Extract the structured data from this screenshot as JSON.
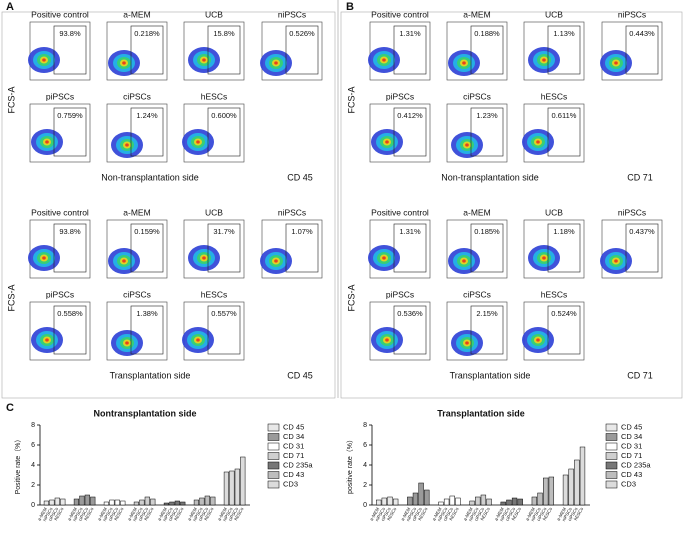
{
  "panels": [
    {
      "label": "A",
      "blocks": [
        {
          "y_label": "FCS-A",
          "side_label": "Non-transplantation side",
          "marker_label": "CD 45",
          "plots": [
            {
              "name": "Positive control",
              "percent": "93.8%"
            },
            {
              "name": "a-MEM",
              "percent": "0.218%"
            },
            {
              "name": "UCB",
              "percent": "15.8%"
            },
            {
              "name": "niPSCs",
              "percent": "0.526%"
            },
            {
              "name": "piPSCs",
              "percent": "0.759%"
            },
            {
              "name": "ciPSCs",
              "percent": "1.24%"
            },
            {
              "name": "hESCs",
              "percent": "0.600%"
            }
          ]
        },
        {
          "y_label": "FCS-A",
          "side_label": "Transplantation side",
          "marker_label": "CD 45",
          "plots": [
            {
              "name": "Positive control",
              "percent": "93.8%"
            },
            {
              "name": "a-MEM",
              "percent": "0.159%"
            },
            {
              "name": "UCB",
              "percent": "31.7%"
            },
            {
              "name": "niPSCs",
              "percent": "1.07%"
            },
            {
              "name": "piPSCs",
              "percent": "0.558%"
            },
            {
              "name": "ciPSCs",
              "percent": "1.38%"
            },
            {
              "name": "hESCs",
              "percent": "0.557%"
            }
          ]
        }
      ]
    },
    {
      "label": "B",
      "blocks": [
        {
          "y_label": "FCS-A",
          "side_label": "Non-transplantation side",
          "marker_label": "CD 71",
          "plots": [
            {
              "name": "Positive control",
              "percent": "1.31%"
            },
            {
              "name": "a-MEM",
              "percent": "0.188%"
            },
            {
              "name": "UCB",
              "percent": "1.13%"
            },
            {
              "name": "niPSCs",
              "percent": "0.443%"
            },
            {
              "name": "piPSCs",
              "percent": "0.412%"
            },
            {
              "name": "ciPSCs",
              "percent": "1.23%"
            },
            {
              "name": "hESCs",
              "percent": "0.611%"
            }
          ]
        },
        {
          "y_label": "FCS-A",
          "side_label": "Transplantation side",
          "marker_label": "CD 71",
          "plots": [
            {
              "name": "Positive control",
              "percent": "1.31%"
            },
            {
              "name": "a-MEM",
              "percent": "0.185%"
            },
            {
              "name": "UCB",
              "percent": "1.18%"
            },
            {
              "name": "niPSCs",
              "percent": "0.437%"
            },
            {
              "name": "piPSCs",
              "percent": "0.536%"
            },
            {
              "name": "ciPSCs",
              "percent": "2.15%"
            },
            {
              "name": "hESCs",
              "percent": "0.524%"
            }
          ]
        }
      ]
    }
  ],
  "panel_c_label": "C",
  "chart_data": [
    {
      "type": "bar",
      "title": "Nontransplantation side",
      "y_label": "Positive rate（%）",
      "categories": [
        "a-MEM",
        "niPSCs",
        "ciPSCs",
        "hESCs"
      ],
      "ylim": [
        0,
        8
      ],
      "yticks": [
        0,
        2,
        4,
        6,
        8
      ],
      "series": [
        {
          "name": "CD 45",
          "color": "#e8e8e8",
          "values": [
            0.4,
            0.5,
            0.7,
            0.6
          ]
        },
        {
          "name": "CD 34",
          "color": "#9a9a9a",
          "values": [
            0.6,
            0.9,
            1.0,
            0.8
          ]
        },
        {
          "name": "CD 31",
          "color": "#ffffff",
          "values": [
            0.3,
            0.5,
            0.5,
            0.4
          ]
        },
        {
          "name": "CD 71",
          "color": "#cfcfcf",
          "values": [
            0.3,
            0.5,
            0.8,
            0.6
          ]
        },
        {
          "name": "CD 235a",
          "color": "#777777",
          "values": [
            0.2,
            0.3,
            0.4,
            0.3
          ]
        },
        {
          "name": "CD 43",
          "color": "#bdbdbd",
          "values": [
            0.5,
            0.7,
            0.9,
            0.8
          ]
        },
        {
          "name": "CD3",
          "color": "#dcdcdc",
          "values": [
            3.3,
            3.4,
            3.6,
            4.8
          ]
        }
      ]
    },
    {
      "type": "bar",
      "title": "Transplantation side",
      "y_label": "positive rate（%）",
      "categories": [
        "a-MEM",
        "niPSCs",
        "ciPSCs",
        "hESCs"
      ],
      "ylim": [
        0,
        8
      ],
      "yticks": [
        0,
        2,
        4,
        6,
        8
      ],
      "series": [
        {
          "name": "CD 45",
          "color": "#e8e8e8",
          "values": [
            0.5,
            0.7,
            0.8,
            0.6
          ]
        },
        {
          "name": "CD 34",
          "color": "#9a9a9a",
          "values": [
            0.8,
            1.2,
            2.2,
            1.5
          ]
        },
        {
          "name": "CD 31",
          "color": "#ffffff",
          "values": [
            0.3,
            0.6,
            0.9,
            0.7
          ]
        },
        {
          "name": "CD 71",
          "color": "#cfcfcf",
          "values": [
            0.4,
            0.8,
            1.0,
            0.6
          ]
        },
        {
          "name": "CD 235a",
          "color": "#777777",
          "values": [
            0.3,
            0.5,
            0.7,
            0.6
          ]
        },
        {
          "name": "CD 43",
          "color": "#bdbdbd",
          "values": [
            0.8,
            1.2,
            2.7,
            2.8
          ]
        },
        {
          "name": "CD3",
          "color": "#dcdcdc",
          "values": [
            3.0,
            3.6,
            4.5,
            5.8
          ]
        }
      ]
    }
  ]
}
